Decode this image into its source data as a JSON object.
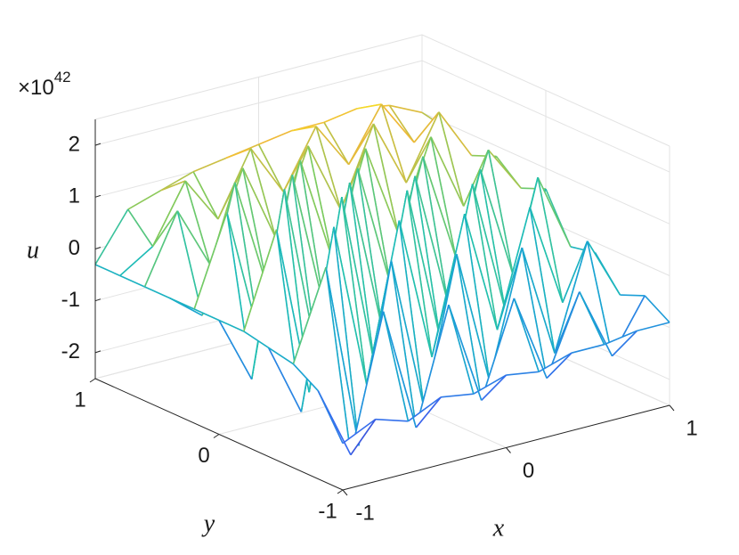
{
  "chart_data": {
    "type": "mesh",
    "xlabel": "x",
    "ylabel": "y",
    "zlabel": "u",
    "multiplier": {
      "base": "×10",
      "exponent": "42"
    },
    "x": [
      -1,
      -0.8,
      -0.6,
      -0.4,
      -0.2,
      0,
      0.2,
      0.4,
      0.6,
      0.8,
      1
    ],
    "y": [
      -1,
      -0.8,
      -0.6,
      -0.4,
      -0.2,
      0,
      0.2,
      0.4,
      0.6,
      0.8,
      1
    ],
    "z": [
      [
        -1.6,
        -1.3,
        -1.5,
        -1.2,
        -1.3,
        -1.1,
        -1.2,
        -1.0,
        -1.0,
        -0.9,
        -0.9
      ],
      [
        -0.8,
        -2.2,
        0.4,
        -2.0,
        0.2,
        -1.8,
        0.0,
        -1.7,
        -0.2,
        -1.6,
        -0.6
      ],
      [
        -0.5,
        1.2,
        -2.4,
        1.0,
        -2.0,
        0.8,
        -1.8,
        0.6,
        -1.6,
        0.4,
        -0.8
      ],
      [
        -0.4,
        -1.8,
        1.6,
        -1.6,
        1.4,
        -1.4,
        1.2,
        -1.2,
        1.0,
        -1.0,
        -0.2
      ],
      [
        -0.3,
        1.5,
        -1.8,
        1.8,
        -1.6,
        1.6,
        -1.4,
        1.4,
        -1.2,
        1.2,
        -0.3
      ],
      [
        -0.3,
        -1.6,
        1.9,
        -1.5,
        1.7,
        -1.3,
        1.5,
        -1.1,
        1.3,
        -0.9,
        0.6
      ],
      [
        -0.3,
        1.4,
        -1.2,
        1.8,
        -1.0,
        1.6,
        -0.8,
        1.5,
        -0.6,
        1.3,
        0.4
      ],
      [
        -0.3,
        -0.8,
        1.6,
        -0.6,
        1.7,
        -0.4,
        1.6,
        -0.2,
        1.5,
        0.0,
        0.8
      ],
      [
        -0.3,
        1.0,
        -0.2,
        1.5,
        0.0,
        1.6,
        0.2,
        1.7,
        0.4,
        1.6,
        0.6
      ],
      [
        -0.3,
        0.1,
        1.2,
        0.3,
        1.5,
        0.5,
        1.6,
        0.7,
        1.7,
        0.8,
        0.9
      ],
      [
        -0.3,
        0.6,
        0.8,
        1.0,
        1.1,
        1.2,
        1.3,
        1.3,
        1.4,
        1.3,
        1.0
      ]
    ],
    "xlim": [
      -1,
      1
    ],
    "ylim": [
      -1,
      1
    ],
    "zlim": [
      -2.5,
      2.5
    ],
    "xticks": [
      -1,
      0,
      1
    ],
    "yticks": [
      -1,
      0,
      1
    ],
    "zticks": [
      -2,
      -1,
      0,
      1,
      2
    ],
    "grid": true,
    "colormap": "parula"
  }
}
